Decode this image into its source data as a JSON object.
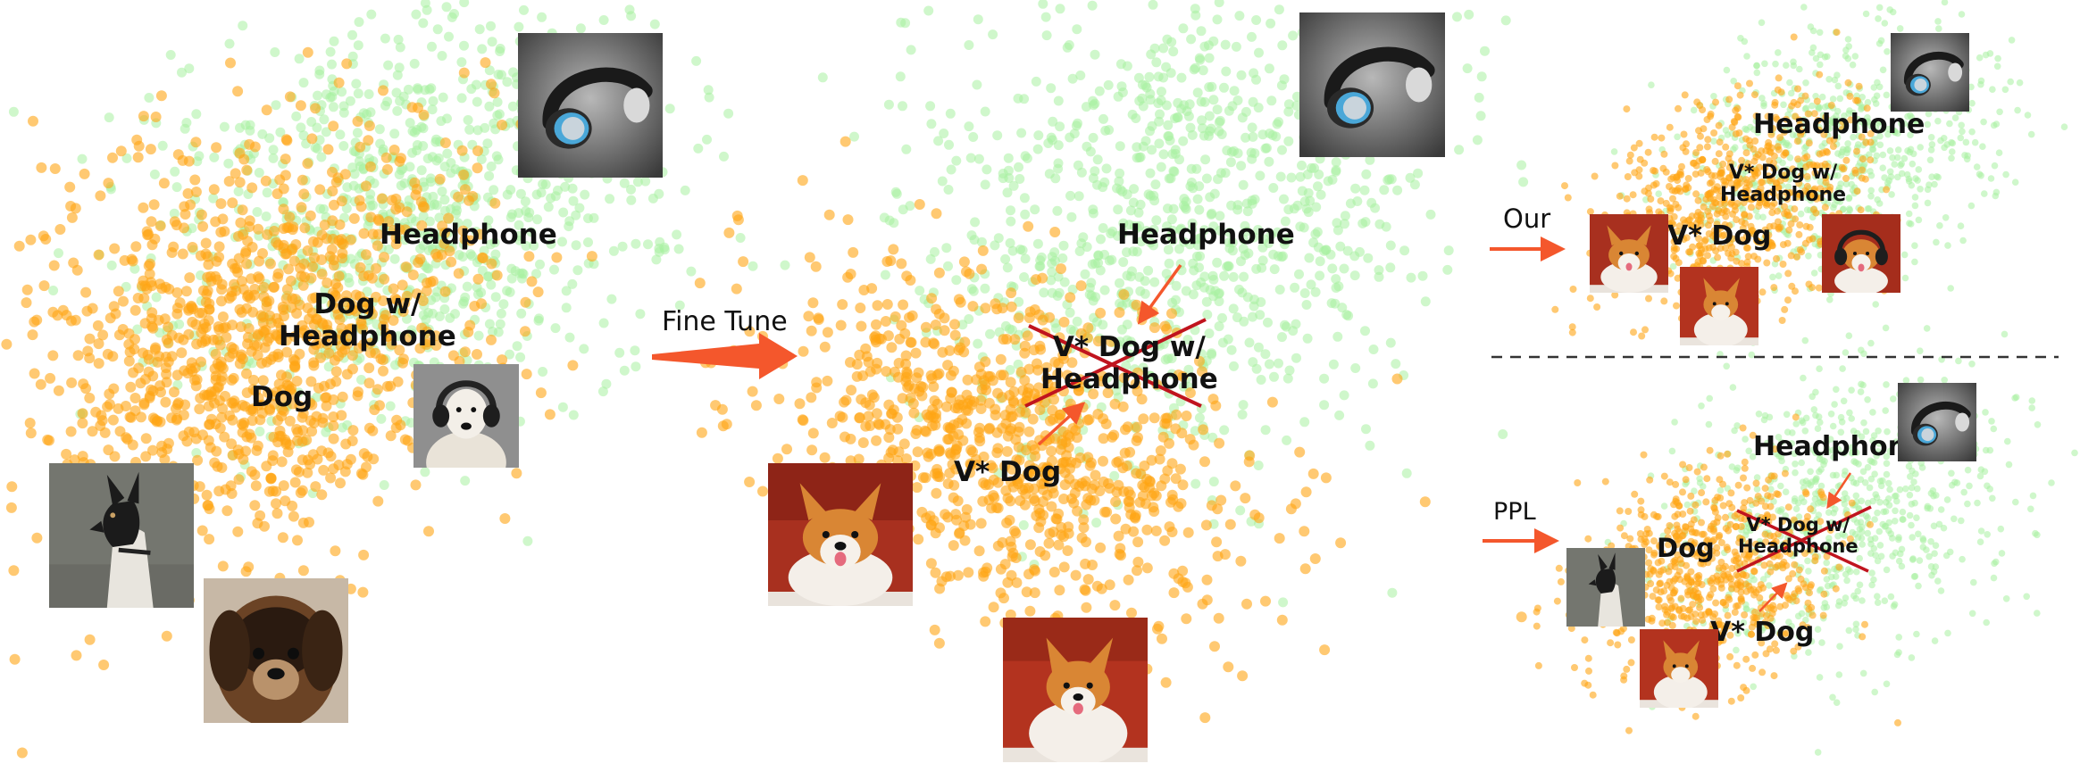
{
  "panels": {
    "left": {
      "headphone_label": "Headphone",
      "combo_label_line1": "Dog w/",
      "combo_label_line2": "Headphone",
      "dog_label": "Dog"
    },
    "middle": {
      "headphone_label": "Headphone",
      "combo_label_line1": "V* Dog w/",
      "combo_label_line2": "Headphone",
      "vdog_label": "V* Dog"
    },
    "top_right": {
      "method_label": "Our",
      "headphone_label": "Headphone",
      "combo_label_line1": "V* Dog w/",
      "combo_label_line2": "Headphone",
      "vdog_label": "V* Dog"
    },
    "bottom_right": {
      "method_label": "PPL",
      "headphone_label": "Headphone",
      "combo_label_line1": "V* Dog w/",
      "combo_label_line2": "Headphone",
      "dog_label": "Dog",
      "vdog_label": "V* Dog"
    }
  },
  "transition_label": "Fine Tune",
  "colors": {
    "dog_cluster": "#ffa514",
    "headphone_cluster": "#a8f0a0",
    "arrow": "#f4572c",
    "cross": "#c0141e",
    "divider": "#333333"
  },
  "icons": [
    "headphone-image",
    "dog-headphone-image",
    "black-white-dog-image",
    "brown-dog-image",
    "corgi-image",
    "corgi-headphone-image"
  ]
}
